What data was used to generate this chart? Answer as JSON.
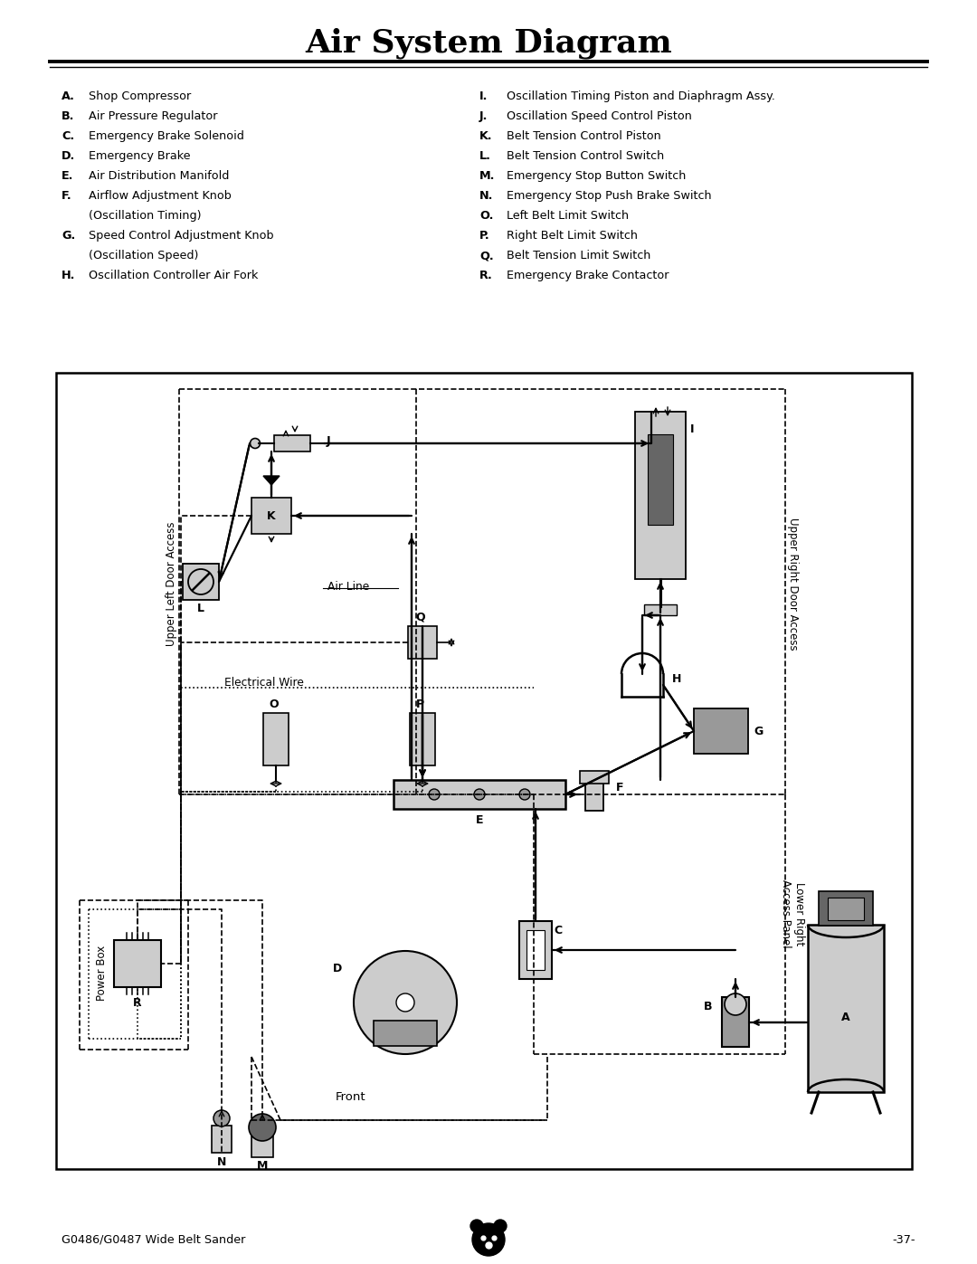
{
  "title": "Air System Diagram",
  "title_fontsize": 26,
  "page_width": 10.8,
  "page_height": 13.97,
  "bg_color": "#ffffff",
  "legend_left": [
    [
      "A.",
      "Shop Compressor"
    ],
    [
      "B.",
      "Air Pressure Regulator"
    ],
    [
      "C.",
      "Emergency Brake Solenoid"
    ],
    [
      "D.",
      "Emergency Brake"
    ],
    [
      "E.",
      "Air Distribution Manifold"
    ],
    [
      "F.",
      "Airflow Adjustment Knob"
    ],
    [
      "",
      "(Oscillation Timing)"
    ],
    [
      "G.",
      "Speed Control Adjustment Knob"
    ],
    [
      "",
      "(Oscillation Speed)"
    ],
    [
      "H.",
      "Oscillation Controller Air Fork"
    ]
  ],
  "legend_right": [
    [
      "I.",
      "Oscillation Timing Piston and Diaphragm Assy."
    ],
    [
      "J.",
      "Oscillation Speed Control Piston"
    ],
    [
      "K.",
      "Belt Tension Control Piston"
    ],
    [
      "L.",
      "Belt Tension Control Switch"
    ],
    [
      "M.",
      "Emergency Stop Button Switch"
    ],
    [
      "N.",
      "Emergency Stop Push Brake Switch"
    ],
    [
      "O.",
      "Left Belt Limit Switch"
    ],
    [
      "P.",
      "Right Belt Limit Switch"
    ],
    [
      "Q.",
      "Belt Tension Limit Switch"
    ],
    [
      "R.",
      "Emergency Brake Contactor"
    ]
  ],
  "footer_left": "G0486/G0487 Wide Belt Sander",
  "footer_right": "-37-",
  "gray_light": "#cccccc",
  "gray_mid": "#999999",
  "gray_dark": "#666666",
  "black": "#000000",
  "white": "#ffffff"
}
